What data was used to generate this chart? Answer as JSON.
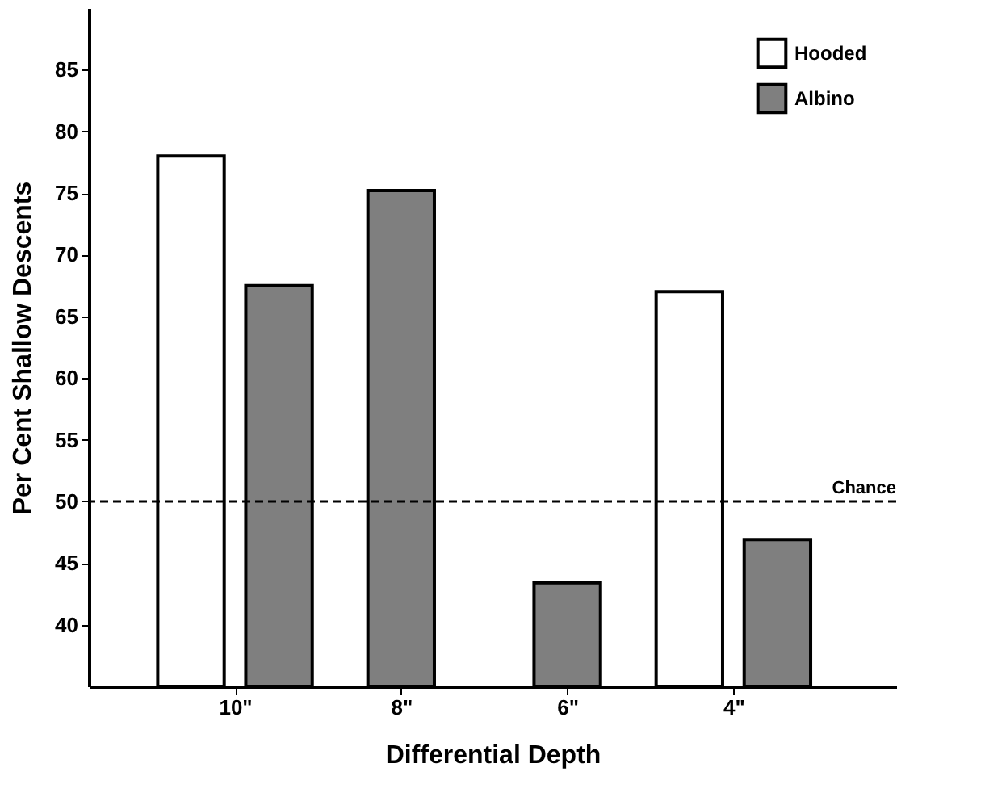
{
  "chart_data": {
    "type": "bar",
    "xlabel": "Differential Depth",
    "ylabel": "Per Cent Shallow Descents",
    "categories": [
      "10\"",
      "8\"",
      "6\"",
      "4\""
    ],
    "series": [
      {
        "name": "Hooded",
        "color": "#ffffff",
        "values": [
          78,
          null,
          null,
          67
        ]
      },
      {
        "name": "Albino",
        "color": "#7f7f7f",
        "values": [
          67.5,
          75.2,
          43.4,
          46.9
        ]
      }
    ],
    "ylim": [
      35,
      90
    ],
    "yticks": [
      40,
      45,
      50,
      55,
      60,
      65,
      70,
      75,
      80,
      85
    ],
    "grid": false,
    "legend": "top right",
    "ref_lines": [
      {
        "axis": "y",
        "value": 50,
        "label": "Chance",
        "line_style": "dashed"
      }
    ]
  }
}
